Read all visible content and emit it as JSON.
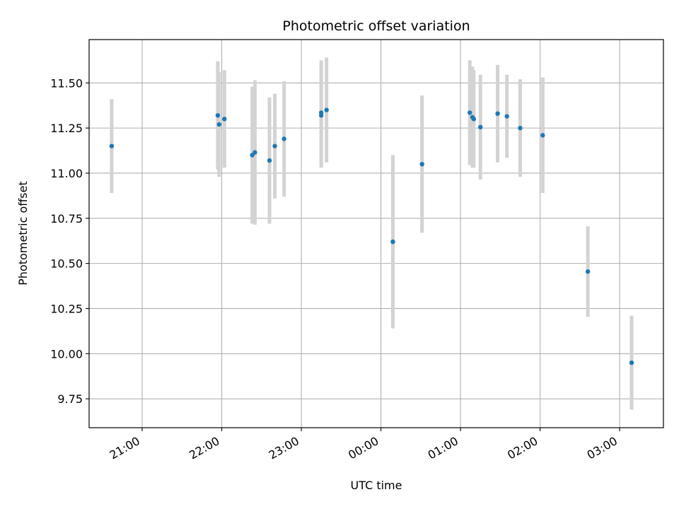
{
  "chart_data": {
    "type": "scatter",
    "title": "Photometric offset variation",
    "xlabel": "UTC time",
    "ylabel": "Photometric offset",
    "grid": true,
    "legend": "none",
    "x_tick_labels": [
      "21:00",
      "22:00",
      "23:00",
      "00:00",
      "01:00",
      "02:00",
      "03:00"
    ],
    "x_ticks": [
      "21:00",
      "22:00",
      "23:00",
      "24:00",
      "25:00",
      "26:00",
      "27:00"
    ],
    "y_ticks": [
      9.75,
      10.0,
      10.25,
      10.5,
      10.75,
      11.0,
      11.25,
      11.5
    ],
    "y_tick_labels": [
      "9.75",
      "10.00",
      "10.25",
      "10.50",
      "10.75",
      "11.00",
      "11.25",
      "11.50"
    ],
    "xlim": [
      "20:20",
      "27:33"
    ],
    "ylim": [
      9.59,
      11.74
    ],
    "colors": {
      "point": "#1f77b4",
      "errorbar": "#d3d3d3",
      "grid": "#b0b0b0"
    },
    "points": [
      {
        "x": "20:37",
        "y": 11.15,
        "err": 0.26
      },
      {
        "x": "21:57",
        "y": 11.32,
        "err": 0.3
      },
      {
        "x": "21:58",
        "y": 11.27,
        "err": 0.29
      },
      {
        "x": "22:02",
        "y": 11.3,
        "err": 0.27
      },
      {
        "x": "22:23",
        "y": 11.1,
        "err": 0.38
      },
      {
        "x": "22:25",
        "y": 11.115,
        "err": 0.4
      },
      {
        "x": "22:36",
        "y": 11.07,
        "err": 0.35
      },
      {
        "x": "22:40",
        "y": 11.15,
        "err": 0.29
      },
      {
        "x": "22:47",
        "y": 11.19,
        "err": 0.32
      },
      {
        "x": "23:15",
        "y": 11.32,
        "err": 0.29
      },
      {
        "x": "23:15",
        "y": 11.335,
        "err": 0.29
      },
      {
        "x": "23:19",
        "y": 11.35,
        "err": 0.29
      },
      {
        "x": "24:09",
        "y": 10.62,
        "err": 0.47
      },
      {
        "x": "24:09",
        "y": 10.62,
        "err": 0.48
      },
      {
        "x": "24:31",
        "y": 11.05,
        "err": 0.38
      },
      {
        "x": "25:07",
        "y": 11.335,
        "err": 0.29
      },
      {
        "x": "25:09",
        "y": 11.31,
        "err": 0.28
      },
      {
        "x": "25:10",
        "y": 11.3,
        "err": 0.27
      },
      {
        "x": "25:15",
        "y": 11.255,
        "err": 0.29
      },
      {
        "x": "25:28",
        "y": 11.33,
        "err": 0.27
      },
      {
        "x": "25:35",
        "y": 11.315,
        "err": 0.23
      },
      {
        "x": "25:45",
        "y": 11.25,
        "err": 0.27
      },
      {
        "x": "26:02",
        "y": 11.21,
        "err": 0.32
      },
      {
        "x": "26:36",
        "y": 10.455,
        "err": 0.25
      },
      {
        "x": "27:09",
        "y": 9.95,
        "err": 0.26
      }
    ]
  }
}
